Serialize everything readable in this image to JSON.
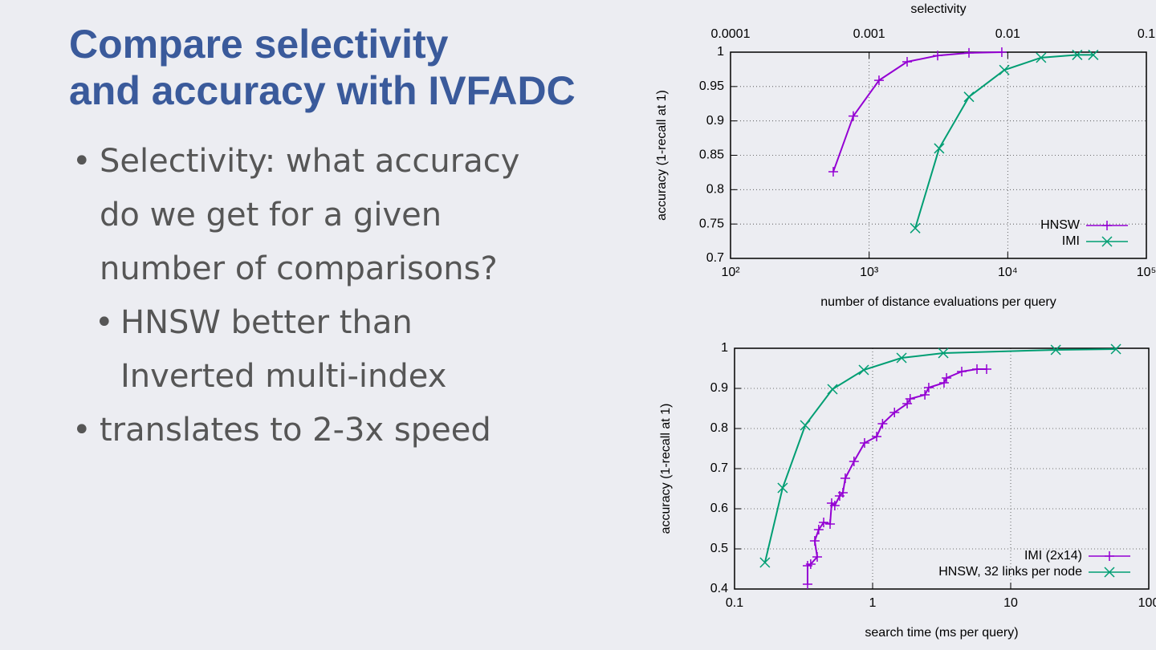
{
  "slide": {
    "title_lines": [
      "Compare selectivity",
      "and accuracy with IVFADC"
    ],
    "bullets": [
      {
        "text": "Selectivity: what accuracy do we get for a given number of comparisons?",
        "sub": [
          "HNSW better than Inverted multi-index"
        ]
      },
      {
        "text": "translates to 2-3x speed",
        "sub": []
      }
    ]
  },
  "chart_data": [
    {
      "type": "line",
      "x_label": "number of distance evaluations per query",
      "y_label": "accuracy (1-recall at 1)",
      "x2_label": "selectivity",
      "xscale": "log",
      "xlim": [
        100,
        100000
      ],
      "xticks": [
        {
          "value": 100,
          "label": "10²"
        },
        {
          "value": 1000,
          "label": "10³"
        },
        {
          "value": 10000,
          "label": "10⁴"
        },
        {
          "value": 100000,
          "label": "10⁵"
        }
      ],
      "x2lim": [
        0.0001,
        0.1
      ],
      "x2ticks": [
        0.0001,
        0.001,
        0.01,
        0.1
      ],
      "ylim": [
        0.7,
        1
      ],
      "yticks": [
        0.7,
        0.75,
        0.8,
        0.85,
        0.9,
        0.95,
        1
      ],
      "grid": true,
      "legend": "lower right",
      "series": [
        {
          "name": "HNSW",
          "color": "#9400d3",
          "marker": "plus",
          "x": [
            551,
            769,
            1178,
            1880,
            3120,
            5250,
            9060
          ],
          "values": [
            0.826,
            0.907,
            0.959,
            0.986,
            0.995,
            0.999,
            1.0
          ]
        },
        {
          "name": "IMI",
          "color": "#009e73",
          "marker": "cross",
          "x": [
            2150,
            3200,
            5250,
            9450,
            17400,
            31700,
            41400
          ],
          "values": [
            0.744,
            0.86,
            0.935,
            0.974,
            0.992,
            0.996,
            0.996
          ]
        }
      ]
    },
    {
      "type": "line",
      "x_label": "search time (ms per query)",
      "y_label": "accuracy (1-recall at 1)",
      "xscale": "log",
      "xlim": [
        0.1,
        100
      ],
      "xticks": [
        0.1,
        1,
        10,
        100
      ],
      "ylim": [
        0.4,
        1
      ],
      "yticks": [
        0.4,
        0.5,
        0.6,
        0.7,
        0.8,
        0.9,
        1
      ],
      "grid": true,
      "legend": "lower right",
      "series": [
        {
          "name": "IMI (2x14)",
          "color": "#9400d3",
          "marker": "plus",
          "x": [
            0.338,
            0.338,
            0.356,
            0.397,
            0.381,
            0.407,
            0.442,
            0.492,
            0.505,
            0.532,
            0.577,
            0.609,
            0.634,
            0.733,
            0.874,
            1.069,
            1.18,
            1.44,
            1.78,
            1.87,
            2.39,
            2.55,
            3.29,
            3.43,
            4.42,
            5.7,
            6.69
          ],
          "values": [
            0.412,
            0.458,
            0.462,
            0.48,
            0.52,
            0.548,
            0.566,
            0.562,
            0.614,
            0.608,
            0.632,
            0.64,
            0.676,
            0.718,
            0.764,
            0.78,
            0.812,
            0.84,
            0.862,
            0.874,
            0.884,
            0.902,
            0.914,
            0.926,
            0.942,
            0.948,
            0.948
          ]
        },
        {
          "name": "HNSW, 32 links per node",
          "color": "#009e73",
          "marker": "cross",
          "x": [
            0.166,
            0.223,
            0.325,
            0.512,
            0.863,
            1.62,
            3.25,
            21.2,
            57.8
          ],
          "values": [
            0.466,
            0.652,
            0.808,
            0.898,
            0.946,
            0.976,
            0.988,
            0.996,
            0.998
          ]
        }
      ]
    }
  ]
}
